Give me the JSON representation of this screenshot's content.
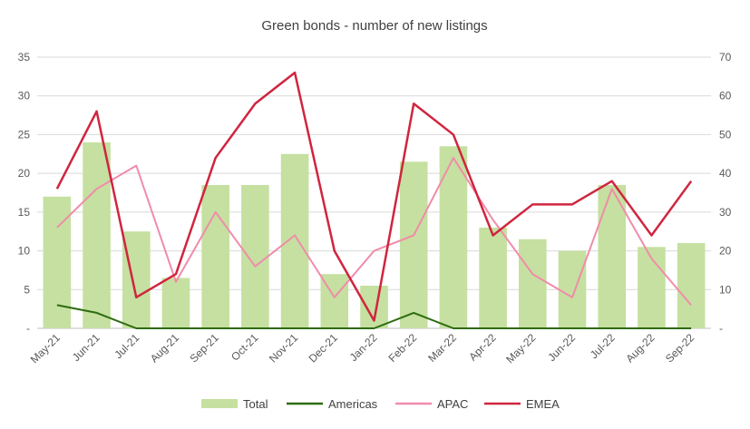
{
  "chart_data": {
    "type": "bar",
    "title": "Green bonds - number of new listings",
    "categories": [
      "May-21",
      "Jun-21",
      "Jul-21",
      "Aug-21",
      "Sep-21",
      "Oct-21",
      "Nov-21",
      "Dec-21",
      "Jan-22",
      "Feb-22",
      "Mar-22",
      "Apr-22",
      "May-22",
      "Jun-22",
      "Jul-22",
      "Aug-22",
      "Sep-22"
    ],
    "bar_series": {
      "name": "Total",
      "axis": "left",
      "color": "#c5e0a0",
      "values": [
        17,
        24,
        12.5,
        6.5,
        18.5,
        18.5,
        22.5,
        7,
        5.5,
        21.5,
        23.5,
        13,
        11.5,
        10,
        18.5,
        10.5,
        11
      ]
    },
    "line_series": [
      {
        "name": "Americas",
        "axis": "right",
        "color": "#2e6b0f",
        "values": [
          6,
          4,
          0,
          0,
          0,
          0,
          0,
          0,
          0,
          4,
          0,
          0,
          0,
          0,
          0,
          0,
          0
        ]
      },
      {
        "name": "APAC",
        "axis": "right",
        "color": "#f08caa",
        "values": [
          26,
          36,
          42,
          12,
          30,
          16,
          24,
          8,
          20,
          24,
          44,
          28,
          14,
          8,
          36,
          18,
          6
        ]
      },
      {
        "name": "EMEA",
        "axis": "right",
        "color": "#d0253f",
        "values": [
          36,
          56,
          8,
          14,
          44,
          58,
          66,
          20,
          2,
          58,
          50,
          24,
          32,
          32,
          38,
          24,
          38
        ]
      }
    ],
    "y_left": {
      "min": 0,
      "max": 35,
      "ticks": [
        0,
        5,
        10,
        15,
        20,
        25,
        30,
        35
      ],
      "zero_label": "-"
    },
    "y_right": {
      "min": 0,
      "max": 70,
      "ticks": [
        0,
        10,
        20,
        30,
        40,
        50,
        60,
        70
      ],
      "zero_label": "-"
    },
    "grid": true,
    "legend_position": "bottom"
  }
}
